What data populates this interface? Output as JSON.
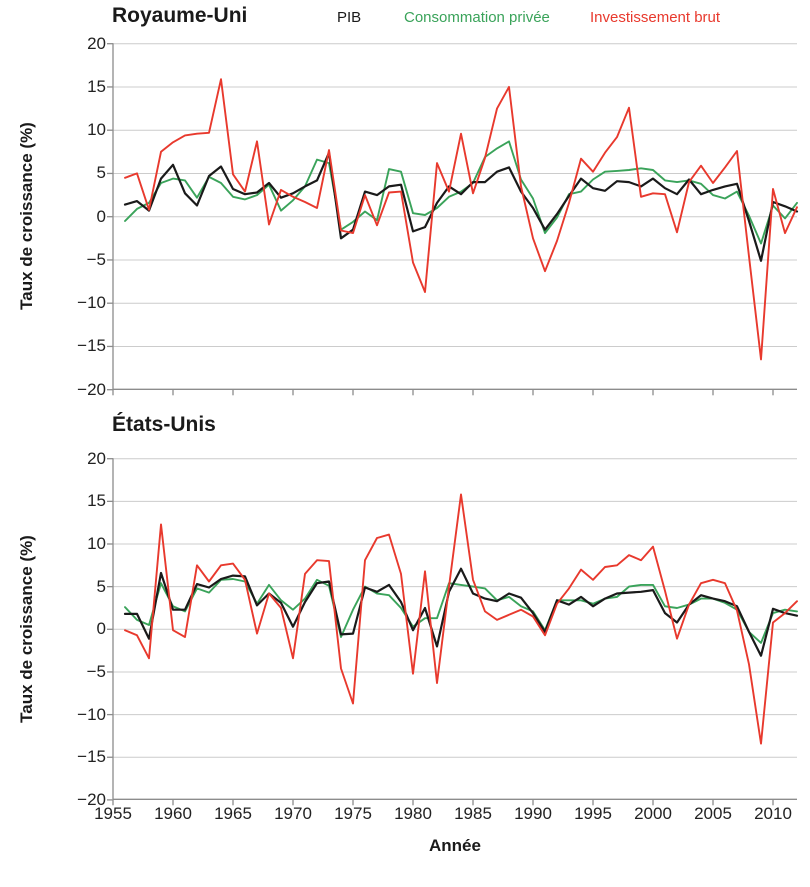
{
  "header": {
    "uk_title": "Royaume-Uni",
    "us_title": "États-Unis",
    "legend": {
      "pib": "PIB",
      "consommation": "Consommation privée",
      "investissement": "Investissement brut"
    }
  },
  "axes": {
    "ylabel": "Taux de croissance (%)",
    "xlabel": "Année",
    "y_tick_values": [
      20,
      15,
      10,
      5,
      0,
      -5,
      -10,
      -15,
      -20
    ],
    "y_tick_labels": [
      "20",
      "15",
      "10",
      "5",
      "0",
      "−5",
      "−10",
      "−15",
      "−20"
    ],
    "x_tick_values": [
      1955,
      1960,
      1965,
      1970,
      1975,
      1980,
      1985,
      1990,
      1995,
      2000,
      2005,
      2010
    ],
    "x_tick_labels": [
      "1955",
      "1960",
      "1965",
      "1970",
      "1975",
      "1980",
      "1985",
      "1990",
      "1995",
      "2000",
      "2005",
      "2010"
    ]
  },
  "colors": {
    "pib": "#1a1a1a",
    "consommation": "#3aa35a",
    "investissement": "#e8392d",
    "grid": "#cccccc",
    "axis": "#8c8c8c"
  },
  "chart_data": [
    {
      "type": "line",
      "title": "Royaume-Uni",
      "xlabel": "Année",
      "ylabel": "Taux de croissance (%)",
      "ylim": [
        -20,
        20
      ],
      "ytick_step": 5,
      "xlim": [
        1955,
        2012
      ],
      "grid": true,
      "legend_position": "top",
      "x": [
        1956,
        1957,
        1958,
        1959,
        1960,
        1961,
        1962,
        1963,
        1964,
        1965,
        1966,
        1967,
        1968,
        1969,
        1970,
        1971,
        1972,
        1973,
        1974,
        1975,
        1976,
        1977,
        1978,
        1979,
        1980,
        1981,
        1982,
        1983,
        1984,
        1985,
        1986,
        1987,
        1988,
        1989,
        1990,
        1991,
        1992,
        1993,
        1994,
        1995,
        1996,
        1997,
        1998,
        1999,
        2000,
        2001,
        2002,
        2003,
        2004,
        2005,
        2006,
        2007,
        2008,
        2009,
        2010,
        2011,
        2012
      ],
      "series": [
        {
          "name": "PIB",
          "color": "#1a1a1a",
          "values": [
            1.4,
            1.8,
            0.7,
            4.4,
            6.0,
            2.7,
            1.3,
            4.7,
            5.8,
            3.2,
            2.6,
            2.8,
            3.9,
            2.2,
            2.7,
            3.5,
            4.2,
            7.4,
            -2.5,
            -1.5,
            2.9,
            2.5,
            3.5,
            3.7,
            -1.7,
            -1.2,
            1.6,
            3.5,
            2.6,
            4.0,
            4.0,
            5.2,
            5.7,
            2.9,
            1.0,
            -1.5,
            0.3,
            2.4,
            4.4,
            3.3,
            3.0,
            4.1,
            4.0,
            3.5,
            4.4,
            3.3,
            2.6,
            4.3,
            2.6,
            3.1,
            3.5,
            3.8,
            -0.5,
            -5.1,
            1.7,
            1.2,
            0.6
          ]
        },
        {
          "name": "Consommation privée",
          "color": "#3aa35a",
          "values": [
            -0.5,
            0.9,
            1.6,
            3.9,
            4.4,
            4.2,
            2.2,
            4.6,
            3.9,
            2.3,
            2.0,
            2.5,
            3.7,
            0.7,
            1.9,
            3.5,
            6.6,
            6.2,
            -1.5,
            -0.6,
            0.6,
            -0.4,
            5.5,
            5.2,
            0.4,
            0.2,
            1.0,
            2.3,
            2.9,
            3.9,
            6.9,
            7.9,
            8.7,
            4.3,
            2.1,
            -1.9,
            -0.1,
            2.6,
            2.9,
            4.3,
            5.2,
            5.3,
            5.4,
            5.6,
            5.4,
            4.2,
            4.0,
            4.2,
            3.8,
            2.5,
            2.1,
            2.9,
            0.1,
            -3.1,
            1.3,
            -0.2,
            1.6
          ]
        },
        {
          "name": "Investissement brut",
          "color": "#e8392d",
          "values": [
            4.5,
            5.0,
            0.8,
            7.5,
            8.6,
            9.4,
            9.6,
            9.7,
            15.9,
            4.9,
            2.9,
            8.7,
            -0.9,
            3.1,
            2.3,
            1.7,
            1.0,
            7.7,
            -1.6,
            -1.9,
            2.5,
            -1.0,
            2.8,
            2.9,
            -5.3,
            -8.7,
            6.2,
            2.9,
            9.6,
            2.7,
            6.8,
            12.5,
            15.0,
            3.5,
            -2.5,
            -6.3,
            -2.8,
            1.6,
            6.7,
            5.2,
            7.4,
            9.2,
            12.6,
            2.3,
            2.7,
            2.6,
            -1.8,
            4.0,
            5.9,
            3.9,
            5.7,
            7.6,
            -4.6,
            -16.5,
            3.2,
            -1.9,
            1.1
          ]
        }
      ]
    },
    {
      "type": "line",
      "title": "États-Unis",
      "xlabel": "Année",
      "ylabel": "Taux de croissance (%)",
      "ylim": [
        -20,
        20
      ],
      "ytick_step": 5,
      "xlim": [
        1955,
        2012
      ],
      "grid": true,
      "x": [
        1956,
        1957,
        1958,
        1959,
        1960,
        1961,
        1962,
        1963,
        1964,
        1965,
        1966,
        1967,
        1968,
        1969,
        1970,
        1971,
        1972,
        1973,
        1974,
        1975,
        1976,
        1977,
        1978,
        1979,
        1980,
        1981,
        1982,
        1983,
        1984,
        1985,
        1986,
        1987,
        1988,
        1989,
        1990,
        1991,
        1992,
        1993,
        1994,
        1995,
        1996,
        1997,
        1998,
        1999,
        2000,
        2001,
        2002,
        2003,
        2004,
        2005,
        2006,
        2007,
        2008,
        2009,
        2010,
        2011,
        2012
      ],
      "series": [
        {
          "name": "PIB",
          "color": "#1a1a1a",
          "values": [
            1.8,
            1.8,
            -1.1,
            6.6,
            2.3,
            2.3,
            5.3,
            4.9,
            5.9,
            6.3,
            6.2,
            2.8,
            4.2,
            3.1,
            0.3,
            3.2,
            5.4,
            5.6,
            -0.6,
            -0.5,
            4.9,
            4.4,
            5.2,
            3.2,
            -0.1,
            2.5,
            -2.0,
            4.4,
            7.1,
            4.2,
            3.6,
            3.3,
            4.2,
            3.7,
            1.9,
            -0.3,
            3.4,
            2.9,
            3.8,
            2.7,
            3.6,
            4.2,
            4.3,
            4.4,
            4.6,
            1.9,
            0.8,
            2.9,
            4.0,
            3.6,
            3.3,
            2.7,
            -0.3,
            -3.1,
            2.4,
            1.9,
            1.6
          ]
        },
        {
          "name": "Consommation privée",
          "color": "#3aa35a",
          "values": [
            2.6,
            1.1,
            0.5,
            5.4,
            2.7,
            2.1,
            4.8,
            4.3,
            5.8,
            5.9,
            5.6,
            3.0,
            5.2,
            3.4,
            2.3,
            3.6,
            5.8,
            5.1,
            -0.9,
            2.3,
            5.0,
            4.2,
            4.0,
            2.5,
            0.3,
            1.3,
            1.3,
            5.4,
            5.2,
            5.0,
            4.8,
            3.4,
            3.8,
            2.7,
            2.1,
            -0.1,
            3.4,
            3.4,
            3.4,
            3.0,
            3.6,
            3.8,
            5.0,
            5.2,
            5.2,
            2.7,
            2.5,
            2.9,
            3.6,
            3.6,
            3.1,
            2.3,
            -0.3,
            -1.6,
            1.9,
            2.3,
            2.1
          ]
        },
        {
          "name": "Investissement brut",
          "color": "#e8392d",
          "values": [
            -0.1,
            -0.7,
            -3.4,
            12.3,
            -0.1,
            -0.9,
            7.5,
            5.6,
            7.5,
            7.7,
            5.8,
            -0.5,
            4.2,
            2.5,
            -3.4,
            6.5,
            8.1,
            8.0,
            -4.6,
            -8.7,
            8.1,
            10.7,
            11.1,
            6.5,
            -5.2,
            6.8,
            -6.3,
            5.0,
            15.8,
            5.8,
            2.1,
            1.1,
            1.7,
            2.3,
            1.5,
            -0.7,
            3.0,
            4.8,
            7.0,
            5.8,
            7.3,
            7.5,
            8.7,
            8.1,
            9.7,
            4.5,
            -1.1,
            2.9,
            5.4,
            5.8,
            5.4,
            2.2,
            -4.1,
            -13.4,
            0.8,
            1.9,
            3.3
          ]
        }
      ]
    }
  ]
}
